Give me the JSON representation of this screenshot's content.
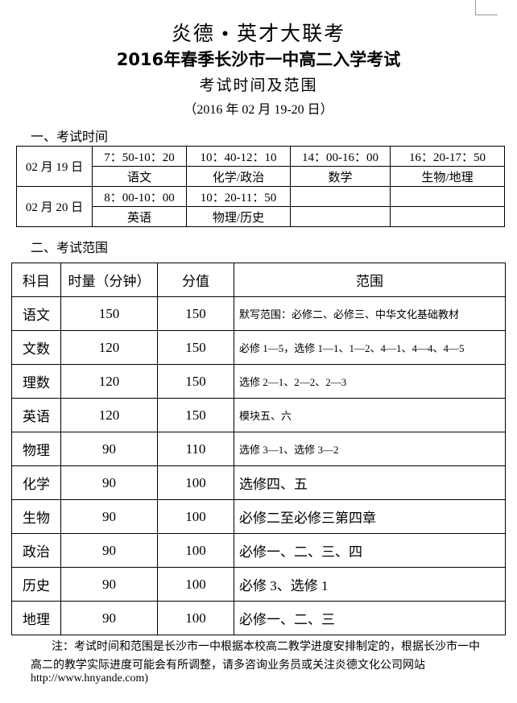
{
  "header": {
    "title": "炎德 • 英才大联考",
    "subtitle": "2016年春季长沙市一中高二入学考试",
    "heading": "考试时间及范围",
    "date": "（2016 年 02 月 19-20 日）"
  },
  "section1": {
    "title": "一、考试时间",
    "days": [
      {
        "date": "02 月 19 日",
        "slots": [
          {
            "time": "7：50-10：20",
            "subject": "语文"
          },
          {
            "time": "10：40-12：10",
            "subject": "化学/政治"
          },
          {
            "time": "14：00-16：00",
            "subject": "数学"
          },
          {
            "time": "16：20-17：50",
            "subject": "生物/地理"
          }
        ]
      },
      {
        "date": "02 月 20 日",
        "slots": [
          {
            "time": "8：00-10：00",
            "subject": "英语"
          },
          {
            "time": "10：20-11：50",
            "subject": "物理/历史"
          },
          {
            "time": "",
            "subject": ""
          },
          {
            "time": "",
            "subject": ""
          }
        ]
      }
    ]
  },
  "section2": {
    "title": "二、考试范围",
    "headers": [
      "科目",
      "时量（分钟）",
      "分值",
      "范围"
    ],
    "rows": [
      [
        "语文",
        "150",
        "150",
        "默写范围：必修二、必修三、中华文化基础教材"
      ],
      [
        "文数",
        "120",
        "150",
        "必修 1—5，选修 1—1、1—2、4—1、4—4、4—5"
      ],
      [
        "理数",
        "120",
        "150",
        "选修 2—1、2—2、2—3"
      ],
      [
        "英语",
        "120",
        "150",
        "模块五、六"
      ],
      [
        "物理",
        "90",
        "110",
        "选修 3—1、选修 3—2"
      ],
      [
        "化学",
        "90",
        "100",
        "选修四、五"
      ],
      [
        "生物",
        "90",
        "100",
        "必修二至必修三第四章"
      ],
      [
        "政治",
        "90",
        "100",
        "必修一、二、三、四"
      ],
      [
        "历史",
        "90",
        "100",
        "必修 3、选修 1"
      ],
      [
        "地理",
        "90",
        "100",
        "必修一、二、三"
      ]
    ]
  },
  "note": {
    "text": "注：考试时间和范围是长沙市一中根据本校高二教学进度安排制定的，根据长沙市一中高二的教学实际进度可能会有所调整，请多咨询业务员或关注炎德文化公司网站",
    "url": "http://www.hnyande.com)"
  }
}
